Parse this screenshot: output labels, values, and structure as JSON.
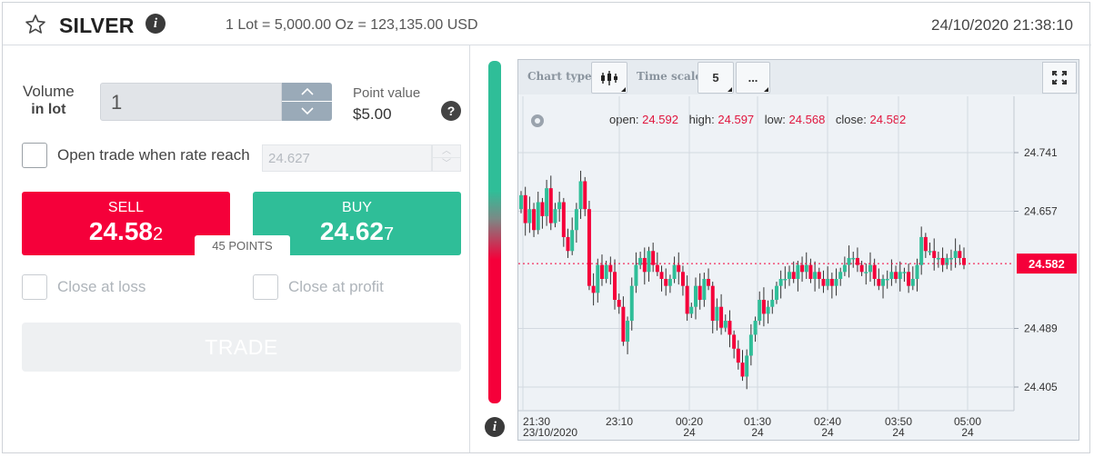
{
  "header": {
    "symbol": "SILVER",
    "lot_info": "1 Lot = 5,000.00 Oz = 123,135.00 USD",
    "datetime": "24/10/2020 21:38:10"
  },
  "volume": {
    "label": "Volume",
    "sublabel": "in lot",
    "value": "1",
    "point_value_label": "Point value",
    "point_value": "$5.00"
  },
  "open_rate": {
    "label": "Open trade when rate reach",
    "placeholder": "24.627",
    "checked": false
  },
  "sell": {
    "label": "SELL",
    "price_main": "24.58",
    "price_tail": "2"
  },
  "buy": {
    "label": "BUY",
    "price_main": "24.62",
    "price_tail": "7"
  },
  "spread": "45 POINTS",
  "close_at_loss": "Close at loss",
  "close_at_profit": "Close at profit",
  "trade_label": "TRADE",
  "colors": {
    "sell": "#f5003a",
    "buy": "#2fbe98",
    "accent_text": "#e0153d"
  },
  "chart": {
    "chart_type_label": "Chart type:",
    "time_scale_label": "Time scale",
    "time_scale_value": "5",
    "more_label": "...",
    "ohlc": {
      "open_label": "open:",
      "open": "24.592",
      "high_label": "high:",
      "high": "24.597",
      "low_label": "low:",
      "low": "24.568",
      "close_label": "close:",
      "close": "24.582"
    },
    "current_price": "24.582",
    "y_ticks": [
      "24.741",
      "24.657",
      "24.489",
      "24.405"
    ],
    "x_ticks": [
      {
        "time": "21:30",
        "date": "23/10/2020"
      },
      {
        "time": "23:10",
        "date": ""
      },
      {
        "time": "00:20",
        "date": "24"
      },
      {
        "time": "01:30",
        "date": "24"
      },
      {
        "time": "02:40",
        "date": "24"
      },
      {
        "time": "03:50",
        "date": "24"
      },
      {
        "time": "05:00",
        "date": "24"
      }
    ]
  },
  "chart_data": {
    "type": "candlestick",
    "y_axis_ticks": [
      24.405,
      24.489,
      24.657,
      24.741
    ],
    "x_axis_ticks": [
      "21:30 23/10/2020",
      "23:10",
      "00:20 24",
      "01:30 24",
      "02:40 24",
      "03:50 24",
      "05:00 24"
    ],
    "current_price": 24.582,
    "last_candle": {
      "open": 24.592,
      "high": 24.597,
      "low": 24.568,
      "close": 24.582
    },
    "close_series": [
      24.68,
      24.64,
      24.66,
      24.63,
      24.67,
      24.65,
      24.69,
      24.64,
      24.66,
      24.67,
      24.62,
      24.6,
      24.63,
      24.66,
      24.7,
      24.66,
      24.55,
      24.54,
      24.58,
      24.56,
      24.58,
      24.57,
      24.53,
      24.52,
      24.47,
      24.5,
      24.55,
      24.58,
      24.59,
      24.57,
      24.6,
      24.58,
      24.57,
      24.56,
      24.55,
      24.56,
      24.58,
      24.57,
      24.55,
      24.51,
      24.52,
      24.55,
      24.53,
      24.56,
      24.55,
      24.5,
      24.52,
      24.49,
      24.5,
      24.48,
      24.46,
      24.44,
      24.42,
      24.45,
      24.48,
      24.5,
      24.53,
      24.51,
      24.52,
      24.53,
      24.55,
      24.56,
      24.56,
      24.57,
      24.56,
      24.58,
      24.57,
      24.58,
      24.56,
      24.57,
      24.56,
      24.55,
      24.56,
      24.55,
      24.56,
      24.57,
      24.58,
      24.59,
      24.59,
      24.58,
      24.57,
      24.57,
      24.58,
      24.56,
      24.55,
      24.56,
      24.56,
      24.57,
      24.56,
      24.57,
      24.57,
      24.55,
      24.56,
      24.58,
      24.62,
      24.6,
      24.6,
      24.59,
      24.59,
      24.58,
      24.59,
      24.59,
      24.6,
      24.59,
      24.58
    ],
    "grid": true
  }
}
